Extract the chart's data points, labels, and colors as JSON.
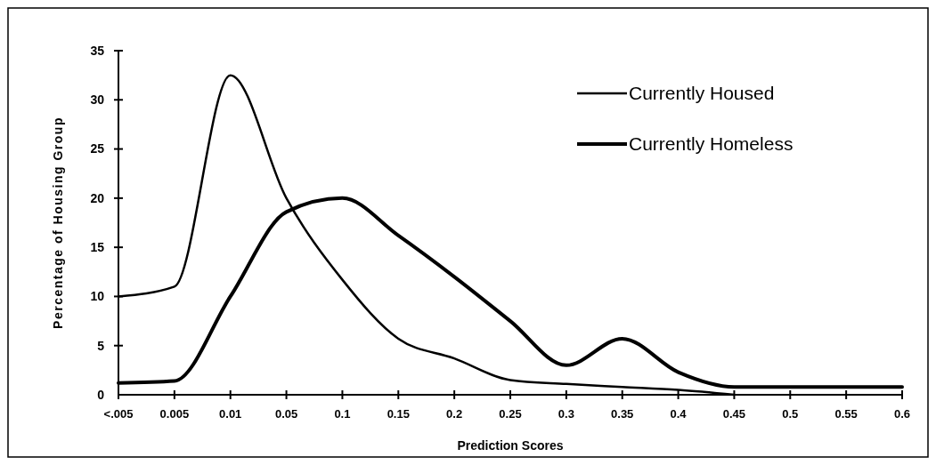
{
  "chart_data": {
    "type": "line",
    "xlabel": "Prediction Scores",
    "ylabel": "Percentage of Housing Group",
    "categories": [
      "<.005",
      "0.005",
      "0.01",
      "0.05",
      "0.1",
      "0.15",
      "0.2",
      "0.25",
      "0.3",
      "0.35",
      "0.4",
      "0.45",
      "0.5",
      "0.55",
      "0.6"
    ],
    "series": [
      {
        "name": "Currently Housed",
        "color": "#000000",
        "values": [
          10,
          11,
          32.5,
          20,
          11.7,
          5.7,
          3.7,
          1.5,
          1.1,
          0.8,
          0.5,
          0,
          null,
          null,
          null
        ]
      },
      {
        "name": "Currently Homeless",
        "color": "#000000",
        "values": [
          1.2,
          1.4,
          10,
          18.6,
          20,
          16.2,
          12,
          7.5,
          3,
          5.7,
          2.3,
          0.8,
          0.8,
          0.8,
          0.8
        ]
      }
    ],
    "ylim": [
      0,
      35
    ],
    "yticks": [
      0,
      5,
      10,
      15,
      20,
      25,
      30,
      35
    ],
    "grid": false,
    "legend": "top right",
    "marker": "none",
    "line_style": "solid"
  }
}
